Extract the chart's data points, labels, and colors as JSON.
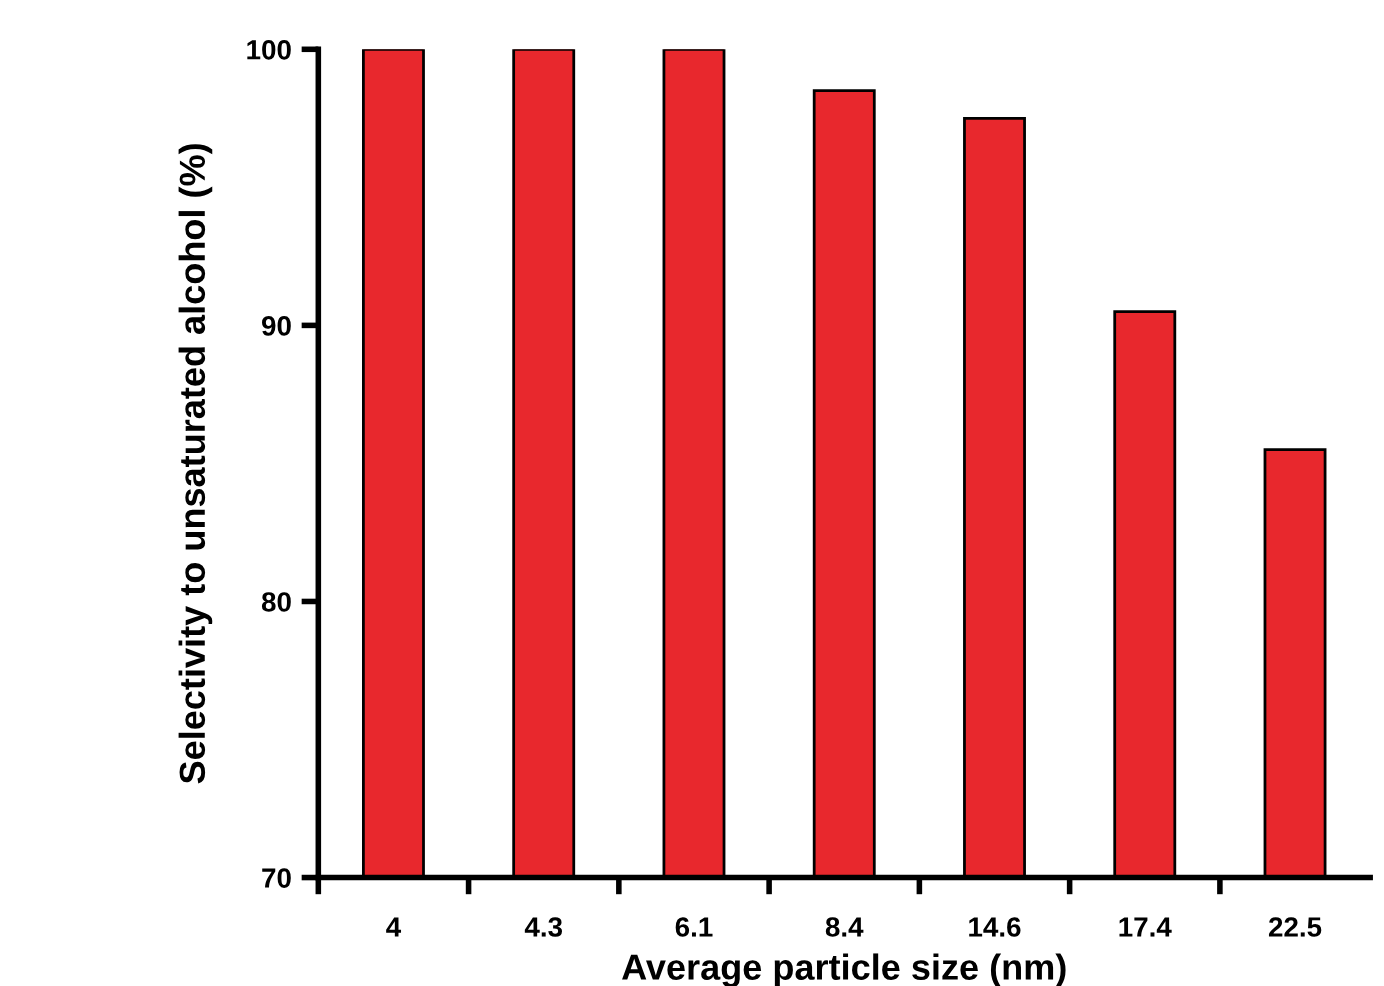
{
  "chart_data": {
    "type": "bar",
    "xlabel": "Average particle size (nm)",
    "ylabel": "Selectivity to unsaturated alcohol (%)",
    "categories": [
      "4",
      "4.3",
      "6.1",
      "8.4",
      "14.6",
      "17.4",
      "22.5"
    ],
    "values": [
      100,
      100,
      100,
      98.5,
      97.5,
      90.5,
      85.5
    ],
    "color": "#e8282d",
    "ylim": [
      70,
      100
    ],
    "yticks": [
      70,
      80,
      90,
      100
    ],
    "grid": false
  }
}
